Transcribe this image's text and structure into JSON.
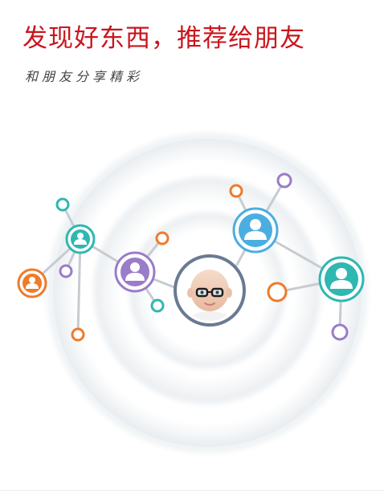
{
  "promo": {
    "headline": "发现好东西，推荐给朋友",
    "subline": "和朋友分享精彩"
  },
  "icons": {
    "user_icon": "user-silhouette-icon",
    "center_avatar": "baby-with-glasses-avatar"
  },
  "colors": {
    "headline": "#c9161d",
    "subline": "#444444",
    "teal": "#2fb7b2",
    "blue": "#4aaee0",
    "purple": "#9a7cc8",
    "orange": "#ee7b2a",
    "center_ring": "#6b7a93",
    "connector": "#c7ccd2"
  }
}
